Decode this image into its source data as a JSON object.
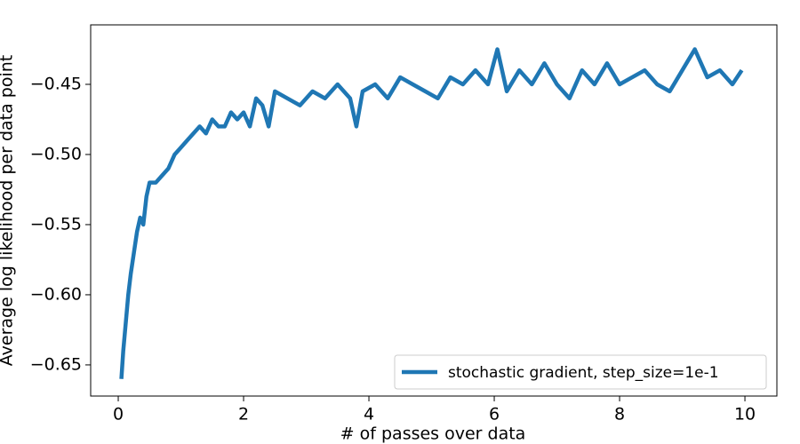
{
  "chart_data": {
    "type": "line",
    "xlabel": "# of passes over data",
    "ylabel": "Average log likelihood per data point",
    "x": [
      0.05,
      0.08,
      0.12,
      0.16,
      0.2,
      0.25,
      0.3,
      0.35,
      0.4,
      0.45,
      0.5,
      0.6,
      0.7,
      0.8,
      0.9,
      1.0,
      1.1,
      1.2,
      1.3,
      1.4,
      1.5,
      1.6,
      1.7,
      1.8,
      1.9,
      2.0,
      2.1,
      2.2,
      2.3,
      2.4,
      2.5,
      2.7,
      2.9,
      3.1,
      3.3,
      3.5,
      3.7,
      3.8,
      3.9,
      4.1,
      4.3,
      4.5,
      4.7,
      4.9,
      5.1,
      5.3,
      5.5,
      5.7,
      5.9,
      6.05,
      6.2,
      6.4,
      6.6,
      6.8,
      7.0,
      7.2,
      7.4,
      7.6,
      7.8,
      8.0,
      8.2,
      8.4,
      8.6,
      8.8,
      9.0,
      9.2,
      9.4,
      9.6,
      9.8,
      9.95
    ],
    "series": [
      {
        "name": "stochastic gradient, step_size=1e-1",
        "color": "#1f77b4",
        "values": [
          -0.66,
          -0.64,
          -0.62,
          -0.6,
          -0.585,
          -0.57,
          -0.555,
          -0.545,
          -0.55,
          -0.53,
          -0.52,
          -0.52,
          -0.515,
          -0.51,
          -0.5,
          -0.495,
          -0.49,
          -0.485,
          -0.48,
          -0.485,
          -0.475,
          -0.48,
          -0.48,
          -0.47,
          -0.475,
          -0.47,
          -0.48,
          -0.46,
          -0.465,
          -0.48,
          -0.455,
          -0.46,
          -0.465,
          -0.455,
          -0.46,
          -0.45,
          -0.46,
          -0.48,
          -0.455,
          -0.45,
          -0.46,
          -0.445,
          -0.45,
          -0.455,
          -0.46,
          -0.445,
          -0.45,
          -0.44,
          -0.45,
          -0.425,
          -0.455,
          -0.44,
          -0.45,
          -0.435,
          -0.45,
          -0.46,
          -0.44,
          -0.45,
          -0.435,
          -0.45,
          -0.445,
          -0.44,
          -0.45,
          -0.455,
          -0.44,
          -0.425,
          -0.445,
          -0.44,
          -0.45,
          -0.44
        ]
      }
    ],
    "xlim": [
      -0.44,
      10.51
    ],
    "ylim": [
      -0.6722,
      -0.4076
    ],
    "xticks": [
      0,
      2,
      4,
      6,
      8,
      10
    ],
    "yticks": [
      {
        "value": -0.65,
        "label": "−0.65"
      },
      {
        "value": -0.6,
        "label": "−0.60"
      },
      {
        "value": -0.55,
        "label": "−0.55"
      },
      {
        "value": -0.5,
        "label": "−0.50"
      },
      {
        "value": -0.45,
        "label": "−0.45"
      }
    ],
    "legend": "lower right"
  }
}
